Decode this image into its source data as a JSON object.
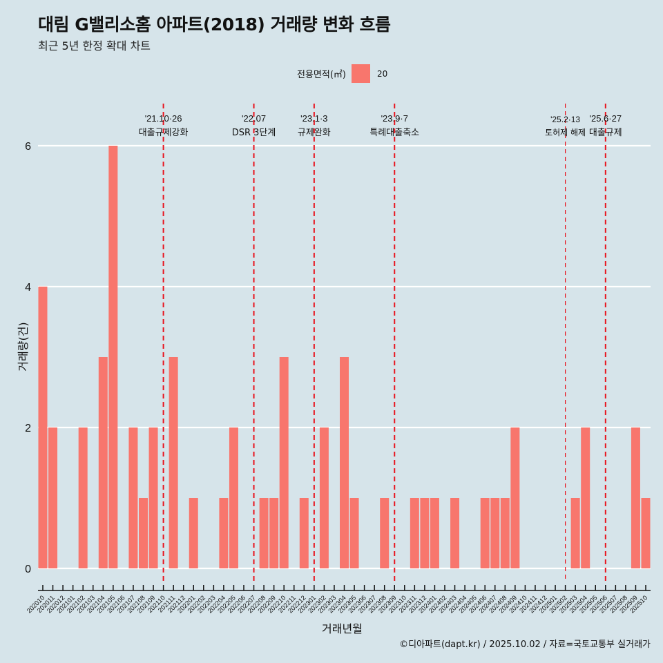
{
  "header": {
    "title": "대림 G밸리소홈 아파트(2018) 거래량 변화 흐름",
    "subtitle": "최근 5년 한정 확대 차트"
  },
  "legend": {
    "title": "전용면적(㎡)",
    "items": [
      {
        "label": "20",
        "color": "#f8766d"
      }
    ]
  },
  "footer": "©디아파트(dapt.kr) / 2025.10.02 / 자료=국토교통부 실거래가",
  "colors": {
    "background": "#d6e4ea",
    "bar": "#f8766d",
    "event_line": "#e8141e",
    "grid": "#ffffff"
  },
  "chart_data": {
    "type": "bar",
    "title": "대림 G밸리소홈 아파트(2018) 거래량 변화 흐름",
    "subtitle": "최근 5년 한정 확대 차트",
    "xlabel": "거래년월",
    "ylabel": "거래량(건)",
    "ylim": [
      0,
      6
    ],
    "yticks": [
      0,
      2,
      4,
      6
    ],
    "grid": true,
    "legend_position": "top",
    "categories": [
      "202010",
      "202011",
      "202012",
      "202101",
      "202102",
      "202103",
      "202104",
      "202105",
      "202106",
      "202107",
      "202108",
      "202109",
      "202110",
      "202111",
      "202112",
      "202201",
      "202202",
      "202203",
      "202204",
      "202205",
      "202206",
      "202207",
      "202208",
      "202209",
      "202210",
      "202211",
      "202212",
      "202301",
      "202302",
      "202303",
      "202304",
      "202305",
      "202306",
      "202307",
      "202308",
      "202309",
      "202310",
      "202311",
      "202312",
      "202401",
      "202402",
      "202403",
      "202404",
      "202405",
      "202406",
      "202407",
      "202408",
      "202409",
      "202410",
      "202411",
      "202412",
      "202501",
      "202502",
      "202503",
      "202504",
      "202505",
      "202506",
      "202507",
      "202508",
      "202509",
      "202510"
    ],
    "series": [
      {
        "name": "20",
        "values": [
          4,
          2,
          0,
          0,
          2,
          0,
          3,
          6,
          0,
          2,
          1,
          2,
          0,
          3,
          0,
          1,
          0,
          0,
          1,
          2,
          0,
          0,
          1,
          1,
          3,
          0,
          1,
          0,
          2,
          0,
          3,
          1,
          0,
          0,
          1,
          0,
          0,
          1,
          1,
          1,
          0,
          1,
          0,
          0,
          1,
          1,
          1,
          2,
          0,
          0,
          0,
          0,
          0,
          1,
          2,
          0,
          0,
          0,
          0,
          2,
          1
        ]
      }
    ],
    "annotations": [
      {
        "at": "202110",
        "date": "'21.10·26",
        "label": "대출규제강화",
        "style": "thick"
      },
      {
        "at": "202207",
        "date": "'22.07",
        "label": "DSR 3단계",
        "style": "thick"
      },
      {
        "at": "202301",
        "date": "'23.1·3",
        "label": "규제완화",
        "style": "thick"
      },
      {
        "at": "202309",
        "date": "'23.9·7",
        "label": "특례대출축소",
        "style": "thick"
      },
      {
        "at": "202502",
        "date": "'25.2·13",
        "label": "토허제 해제",
        "style": "thin"
      },
      {
        "at": "202506",
        "date": "'25.6·27",
        "label": "대출규제",
        "style": "thick"
      }
    ]
  }
}
